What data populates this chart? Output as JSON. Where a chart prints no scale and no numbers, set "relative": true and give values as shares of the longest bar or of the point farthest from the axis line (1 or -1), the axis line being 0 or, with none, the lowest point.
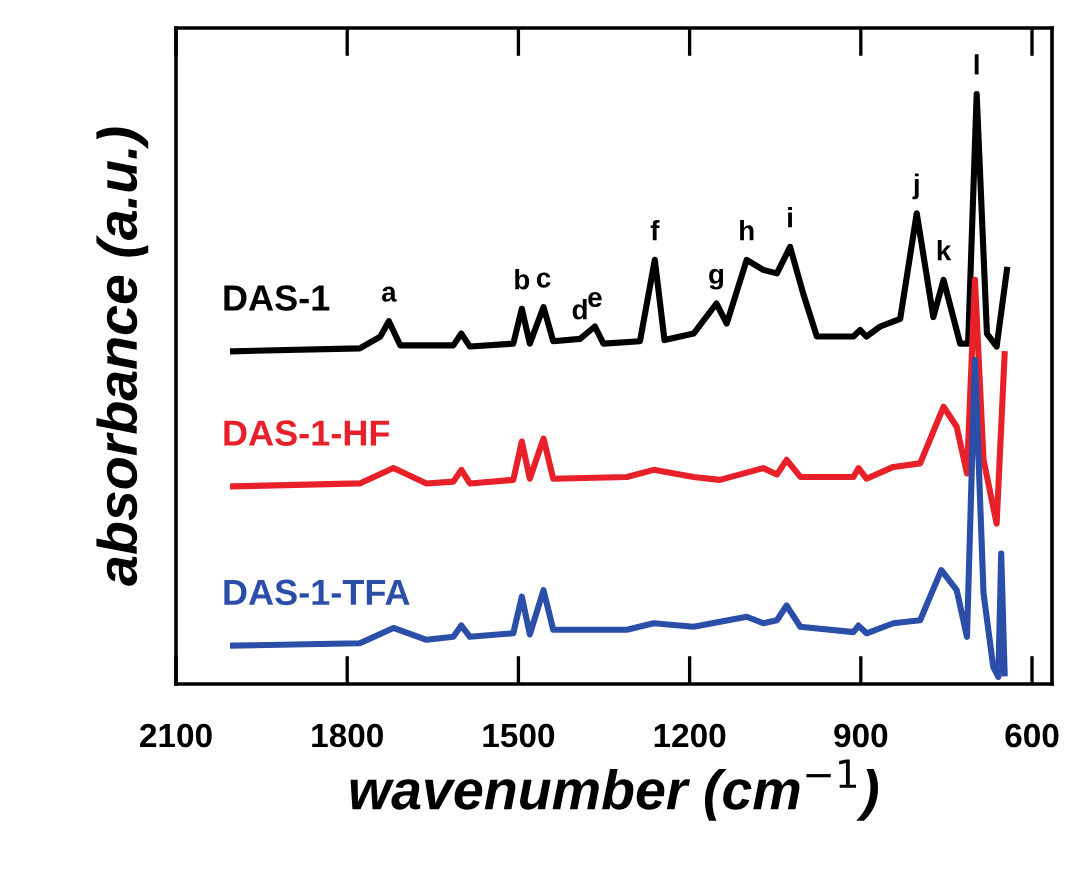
{
  "chart_data": {
    "type": "line",
    "relative": true,
    "xlabel": "wavenumber (cm$^{−1}$)",
    "ylabel": "absorbance (a.u.)",
    "xlim": [
      2100,
      565
    ],
    "xticks": [
      2100,
      1800,
      1500,
      1200,
      900,
      600
    ],
    "grid": false,
    "legend": false,
    "marker": "none",
    "line_style": "solid",
    "series": [
      {
        "name": "DAS-1",
        "color": "#000000",
        "x": [
          2000,
          1778,
          1742,
          1727,
          1707,
          1614,
          1600,
          1585,
          1509,
          1494,
          1480,
          1456,
          1439,
          1392,
          1366,
          1351,
          1287,
          1261,
          1244,
          1193,
          1153,
          1135,
          1100,
          1071,
          1047,
          1024,
          1001,
          977,
          913,
          901,
          890,
          866,
          831,
          802,
          773,
          755,
          726,
          712,
          697,
          679,
          662,
          644
        ],
        "values": [
          0.564,
          0.569,
          0.589,
          0.615,
          0.574,
          0.574,
          0.594,
          0.572,
          0.577,
          0.636,
          0.577,
          0.639,
          0.581,
          0.585,
          0.606,
          0.577,
          0.581,
          0.719,
          0.583,
          0.594,
          0.645,
          0.611,
          0.719,
          0.702,
          0.696,
          0.741,
          0.662,
          0.589,
          0.589,
          0.6,
          0.589,
          0.606,
          0.619,
          0.798,
          0.622,
          0.685,
          0.577,
          0.577,
          1.0,
          0.594,
          0.572,
          0.702
        ]
      },
      {
        "name": "DAS-1-HF",
        "color": "#e8202a",
        "x": [
          2000,
          1778,
          1719,
          1661,
          1614,
          1600,
          1585,
          1509,
          1494,
          1480,
          1456,
          1439,
          1310,
          1263,
          1193,
          1147,
          1071,
          1047,
          1030,
          1006,
          913,
          904,
          890,
          843,
          796,
          755,
          732,
          714,
          700,
          685,
          662,
          648
        ],
        "values": [
          0.335,
          0.34,
          0.366,
          0.34,
          0.343,
          0.363,
          0.34,
          0.346,
          0.411,
          0.348,
          0.416,
          0.348,
          0.351,
          0.363,
          0.351,
          0.346,
          0.366,
          0.355,
          0.38,
          0.351,
          0.351,
          0.366,
          0.348,
          0.368,
          0.374,
          0.47,
          0.436,
          0.357,
          0.685,
          0.38,
          0.272,
          0.559
        ]
      },
      {
        "name": "DAS-1-TFA",
        "color": "#2b4fa8",
        "x": [
          2000,
          1778,
          1719,
          1661,
          1614,
          1600,
          1585,
          1509,
          1494,
          1480,
          1456,
          1439,
          1310,
          1263,
          1193,
          1100,
          1071,
          1047,
          1030,
          1006,
          913,
          904,
          890,
          843,
          796,
          759,
          732,
          714,
          700,
          685,
          668,
          659,
          654,
          648
        ],
        "values": [
          0.065,
          0.069,
          0.095,
          0.075,
          0.08,
          0.099,
          0.08,
          0.086,
          0.148,
          0.084,
          0.159,
          0.092,
          0.092,
          0.103,
          0.097,
          0.114,
          0.103,
          0.108,
          0.133,
          0.097,
          0.088,
          0.099,
          0.086,
          0.103,
          0.108,
          0.193,
          0.159,
          0.08,
          0.549,
          0.154,
          0.029,
          0.012,
          0.221,
          0.018
        ]
      }
    ],
    "annotations": [
      {
        "text": "a",
        "x": 1727,
        "y": 0.615
      },
      {
        "text": "b",
        "x": 1494,
        "y": 0.636
      },
      {
        "text": "c",
        "x": 1456,
        "y": 0.639
      },
      {
        "text": "d",
        "x": 1392,
        "y": 0.585
      },
      {
        "text": "e",
        "x": 1366,
        "y": 0.606
      },
      {
        "text": "f",
        "x": 1261,
        "y": 0.719
      },
      {
        "text": "g",
        "x": 1153,
        "y": 0.645
      },
      {
        "text": "h",
        "x": 1100,
        "y": 0.719
      },
      {
        "text": "i",
        "x": 1024,
        "y": 0.741
      },
      {
        "text": "j",
        "x": 802,
        "y": 0.798
      },
      {
        "text": "k",
        "x": 755,
        "y": 0.685
      },
      {
        "text": "l",
        "x": 697,
        "y": 1.0
      }
    ]
  }
}
